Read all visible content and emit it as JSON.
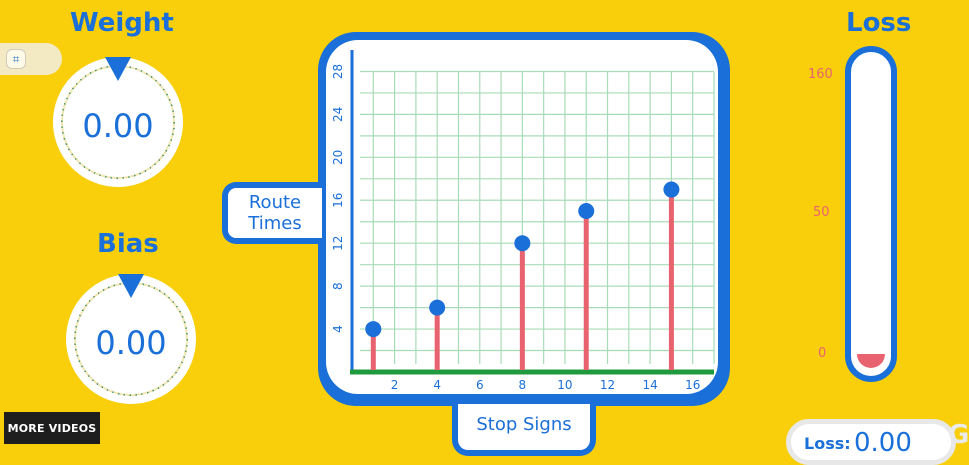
{
  "weight": {
    "title": "Weight",
    "value": "0.00"
  },
  "bias": {
    "title": "Bias",
    "value": "0.00"
  },
  "loss": {
    "title": "Loss",
    "scale": [
      "160",
      "50",
      "0"
    ],
    "box_label": "Loss:",
    "box_value": "0.00"
  },
  "chart": {
    "ylabel_line1": "Route",
    "ylabel_line2": "Times",
    "xlabel": "Stop Signs"
  },
  "more_videos": "MORE VIDEOS",
  "corner_logo": "G",
  "colors": {
    "background": "#f8cf0a",
    "accent": "#1a6fd8",
    "stem": "#e8636f",
    "axis_x": "#1f9a3e",
    "grid": "#a8dcb8"
  },
  "chart_data": {
    "type": "scatter",
    "xlabel": "Stop Signs",
    "ylabel": "Route Times",
    "xlim": [
      0,
      17
    ],
    "ylim": [
      0,
      30
    ],
    "x_ticks": [
      2,
      4,
      6,
      8,
      10,
      12,
      14,
      16
    ],
    "y_ticks": [
      4,
      8,
      12,
      16,
      20,
      24,
      28
    ],
    "grid": true,
    "points": [
      {
        "x": 1,
        "y": 4
      },
      {
        "x": 4,
        "y": 6
      },
      {
        "x": 8,
        "y": 12
      },
      {
        "x": 11,
        "y": 15
      },
      {
        "x": 15,
        "y": 17
      }
    ]
  }
}
